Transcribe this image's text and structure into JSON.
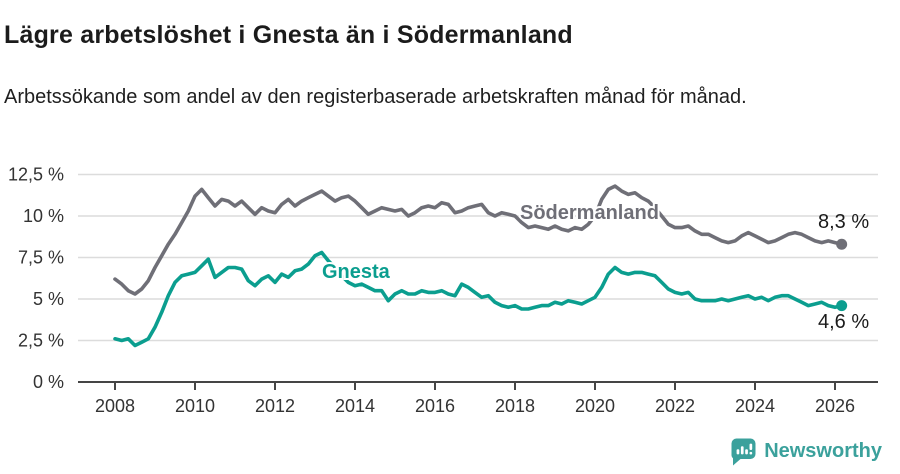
{
  "header": {
    "title": "Lägre arbetslöshet i Gnesta än i Södermanland",
    "subtitle": "Arbetssökande som andel av den registerbaserade arbetskraften månad för månad."
  },
  "chart_data": {
    "type": "line",
    "title": "Lägre arbetslöshet i Gnesta än i Södermanland",
    "xlabel": "",
    "ylabel": "",
    "grid": true,
    "legend_position": "inline-labels-on-lines",
    "x_unit": "year (monthly data)",
    "x_start_year": 2008,
    "x_points_per_year": 6,
    "x_end_year": 2026.17,
    "axis_x_range": [
      2007.1,
      2027.1
    ],
    "ylim": [
      0,
      13.2
    ],
    "x_ticks": [
      {
        "label": "2008",
        "year": 2008
      },
      {
        "label": "2010",
        "year": 2010
      },
      {
        "label": "2012",
        "year": 2012
      },
      {
        "label": "2014",
        "year": 2014
      },
      {
        "label": "2016",
        "year": 2016
      },
      {
        "label": "2018",
        "year": 2018
      },
      {
        "label": "2020",
        "year": 2020
      },
      {
        "label": "2022",
        "year": 2022
      },
      {
        "label": "2024",
        "year": 2024
      },
      {
        "label": "2026",
        "year": 2026
      }
    ],
    "y_ticks": [
      {
        "label": "12,5 %",
        "value": 12.5
      },
      {
        "label": "10 %",
        "value": 10
      },
      {
        "label": "7,5 %",
        "value": 7.5
      },
      {
        "label": "5 %",
        "value": 5
      },
      {
        "label": "2,5 %",
        "value": 2.5
      },
      {
        "label": "0 %",
        "value": 0
      }
    ],
    "series": [
      {
        "name": "Södermanland",
        "color": "#6f6f77",
        "end_label": "8,3 %",
        "end_value": 8.3,
        "values": [
          6.2,
          5.9,
          5.5,
          5.3,
          5.6,
          6.1,
          6.9,
          7.6,
          8.3,
          8.9,
          9.6,
          10.3,
          11.2,
          11.6,
          11.1,
          10.6,
          11.0,
          10.9,
          10.6,
          10.9,
          10.5,
          10.1,
          10.5,
          10.3,
          10.2,
          10.7,
          11.0,
          10.6,
          10.9,
          11.1,
          11.3,
          11.5,
          11.2,
          10.9,
          11.1,
          11.2,
          10.9,
          10.5,
          10.1,
          10.3,
          10.5,
          10.4,
          10.3,
          10.4,
          10.0,
          10.2,
          10.5,
          10.6,
          10.5,
          10.8,
          10.7,
          10.2,
          10.3,
          10.5,
          10.6,
          10.7,
          10.2,
          10.0,
          10.2,
          10.1,
          10.0,
          9.6,
          9.3,
          9.4,
          9.3,
          9.2,
          9.4,
          9.2,
          9.1,
          9.3,
          9.2,
          9.5,
          10.0,
          11.0,
          11.6,
          11.8,
          11.5,
          11.3,
          11.4,
          11.1,
          10.9,
          10.5,
          10.0,
          9.5,
          9.3,
          9.3,
          9.4,
          9.1,
          8.9,
          8.9,
          8.7,
          8.5,
          8.4,
          8.5,
          8.8,
          9.0,
          8.8,
          8.6,
          8.4,
          8.5,
          8.7,
          8.9,
          9.0,
          8.9,
          8.7,
          8.5,
          8.4,
          8.5,
          8.4,
          8.3
        ]
      },
      {
        "name": "Gnesta",
        "color": "#0b9e8f",
        "end_label": "4,6 %",
        "end_value": 4.6,
        "values": [
          2.6,
          2.5,
          2.6,
          2.2,
          2.4,
          2.6,
          3.3,
          4.2,
          5.2,
          6.0,
          6.4,
          6.5,
          6.6,
          7.0,
          7.4,
          6.3,
          6.6,
          6.9,
          6.9,
          6.8,
          6.1,
          5.8,
          6.2,
          6.4,
          6.0,
          6.5,
          6.3,
          6.7,
          6.8,
          7.1,
          7.6,
          7.8,
          7.3,
          6.9,
          6.4,
          6.0,
          5.8,
          5.9,
          5.7,
          5.5,
          5.5,
          4.9,
          5.3,
          5.5,
          5.3,
          5.3,
          5.5,
          5.4,
          5.4,
          5.5,
          5.3,
          5.2,
          5.9,
          5.7,
          5.4,
          5.1,
          5.2,
          4.8,
          4.6,
          4.5,
          4.6,
          4.4,
          4.4,
          4.5,
          4.6,
          4.6,
          4.8,
          4.7,
          4.9,
          4.8,
          4.7,
          4.9,
          5.1,
          5.7,
          6.5,
          6.9,
          6.6,
          6.5,
          6.6,
          6.6,
          6.5,
          6.4,
          6.0,
          5.6,
          5.4,
          5.3,
          5.4,
          5.0,
          4.9,
          4.9,
          4.9,
          5.0,
          4.9,
          5.0,
          5.1,
          5.2,
          5.0,
          5.1,
          4.9,
          5.1,
          5.2,
          5.2,
          5.0,
          4.8,
          4.6,
          4.7,
          4.8,
          4.6,
          4.5,
          4.6
        ]
      }
    ],
    "colors": {
      "grid": "#dcdcdc",
      "axis": "#454545",
      "tick_text": "#333333",
      "value_label_text": "#1b1b1b"
    }
  },
  "footer": {
    "brand": "Newsworthy",
    "brand_color": "#3ba19c",
    "icon": "newsworthy-speech-bubble-bar-chart-icon"
  }
}
